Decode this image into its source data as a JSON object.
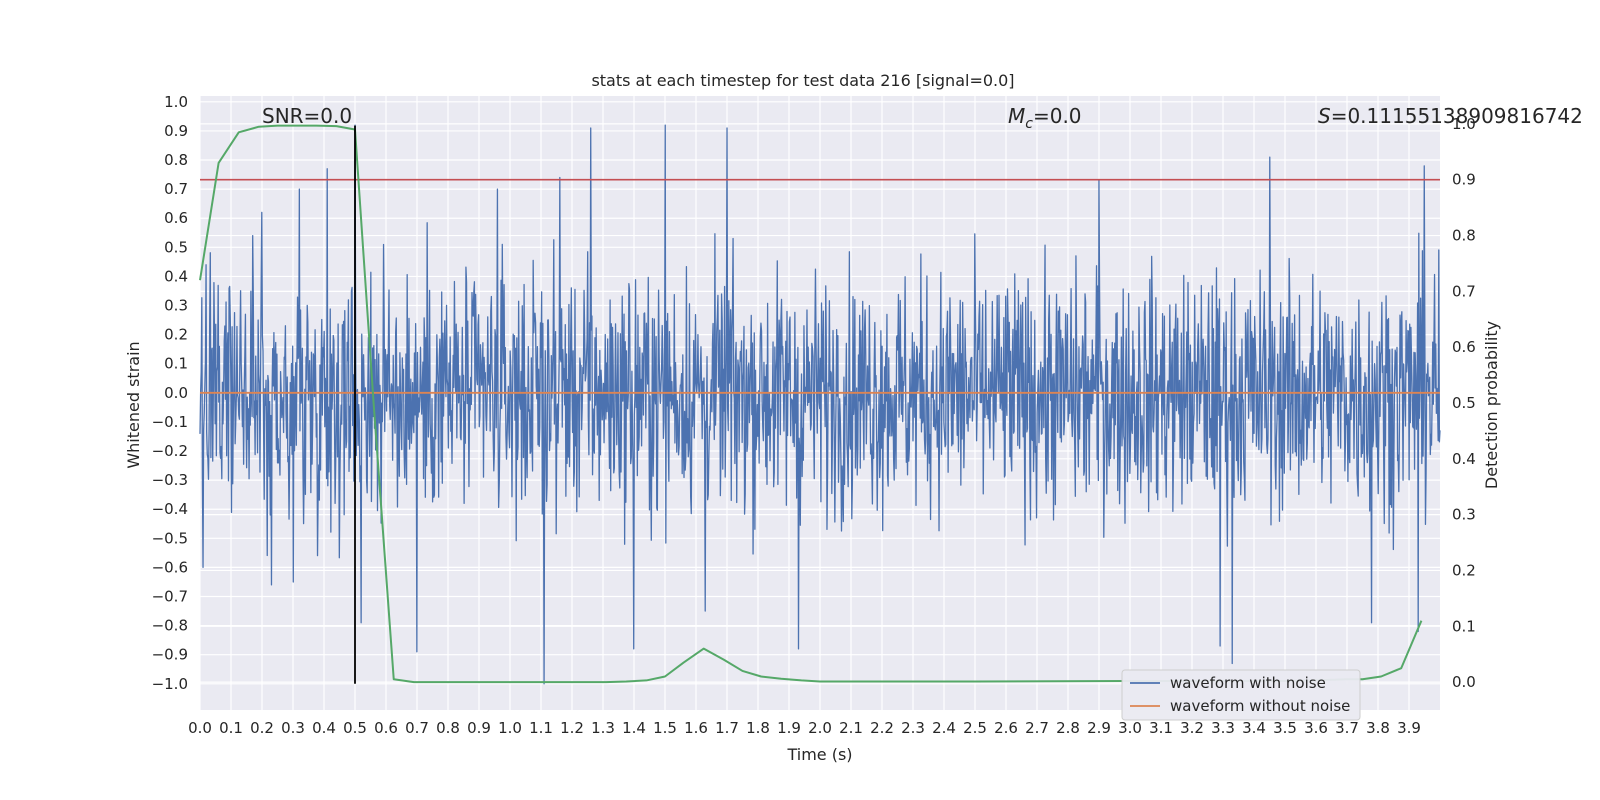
{
  "chart_data": {
    "type": "line",
    "title": "stats at each timestep for test data 216 [signal=0.0]",
    "xlabel": "Time (s)",
    "ylabel": "Whitened strain",
    "y2label": "Detection probability",
    "xlim": [
      0.0,
      4.0
    ],
    "ylim": [
      -1.09,
      1.02
    ],
    "y2lim": [
      -0.05,
      1.05
    ],
    "grid": true,
    "legend_position": "lower-right",
    "x_ticks": [
      "0.0",
      "0.1",
      "0.2",
      "0.3",
      "0.4",
      "0.5",
      "0.6",
      "0.7",
      "0.8",
      "0.9",
      "1.0",
      "1.1",
      "1.2",
      "1.3",
      "1.4",
      "1.5",
      "1.6",
      "1.7",
      "1.8",
      "1.9",
      "2.0",
      "2.1",
      "2.2",
      "2.3",
      "2.4",
      "2.5",
      "2.6",
      "2.7",
      "2.8",
      "2.9",
      "3.0",
      "3.1",
      "3.2",
      "3.3",
      "3.4",
      "3.5",
      "3.6",
      "3.7",
      "3.8",
      "3.9"
    ],
    "y_ticks": [
      "1.0",
      "0.9",
      "0.8",
      "0.7",
      "0.6",
      "0.5",
      "0.4",
      "0.3",
      "0.2",
      "0.1",
      "0.0",
      "−0.1",
      "−0.2",
      "−0.3",
      "−0.4",
      "−0.5",
      "−0.6",
      "−0.7",
      "−0.8",
      "−0.9",
      "−1.0"
    ],
    "y2_ticks": [
      "1.0",
      "0.9",
      "0.8",
      "0.7",
      "0.6",
      "0.5",
      "0.4",
      "0.3",
      "0.2",
      "0.1",
      "0.0"
    ],
    "annotations": {
      "snr": "SNR=0.0",
      "mc_symbol": "M",
      "mc_sub": "c",
      "mc_value": "=0.0",
      "s_symbol": "S",
      "s_value": "=0.11155138909816742"
    },
    "series": [
      {
        "name": "waveform with noise",
        "color": "#4c72b0",
        "axis": "left",
        "description": "whitened noise, 2048 samples over 0-4 s",
        "spikes": [
          {
            "t": 0.02,
            "v": 0.44
          },
          {
            "t": 0.17,
            "v": 0.54
          },
          {
            "t": 0.2,
            "v": 0.62
          },
          {
            "t": 0.3,
            "v": 0.75
          },
          {
            "t": 0.32,
            "v": 0.7
          },
          {
            "t": 0.41,
            "v": 0.77
          },
          {
            "t": 0.5,
            "v": 0.92
          },
          {
            "t": 0.96,
            "v": 0.7
          },
          {
            "t": 1.16,
            "v": 0.74
          },
          {
            "t": 1.26,
            "v": 0.91
          },
          {
            "t": 1.5,
            "v": 0.92
          },
          {
            "t": 1.7,
            "v": 0.91
          },
          {
            "t": 2.9,
            "v": 0.73
          },
          {
            "t": 3.45,
            "v": 0.81
          },
          {
            "t": 3.95,
            "v": 0.78
          },
          {
            "t": 0.01,
            "v": -0.6
          },
          {
            "t": 0.23,
            "v": -0.66
          },
          {
            "t": 0.3,
            "v": -0.65
          },
          {
            "t": 0.52,
            "v": -0.79
          },
          {
            "t": 0.7,
            "v": -0.89
          },
          {
            "t": 1.11,
            "v": -1.0
          },
          {
            "t": 1.4,
            "v": -0.88
          },
          {
            "t": 1.63,
            "v": -0.75
          },
          {
            "t": 1.93,
            "v": -0.88
          },
          {
            "t": 3.29,
            "v": -0.87
          },
          {
            "t": 3.33,
            "v": -0.93
          },
          {
            "t": 3.78,
            "v": -0.79
          },
          {
            "t": 3.93,
            "v": -0.82
          }
        ]
      },
      {
        "name": "waveform without noise",
        "color": "#dd8452",
        "axis": "left",
        "x": [
          0.0,
          4.0
        ],
        "values": [
          0.0,
          0.0
        ]
      },
      {
        "name": "detection probability",
        "color": "#55a868",
        "axis": "right",
        "x": [
          0.0,
          0.06,
          0.125,
          0.19,
          0.25,
          0.31,
          0.375,
          0.44,
          0.5,
          0.56,
          0.625,
          0.69,
          0.75,
          0.81,
          0.875,
          0.94,
          1.0,
          1.06,
          1.125,
          1.19,
          1.25,
          1.31,
          1.375,
          1.44,
          1.5,
          1.56,
          1.625,
          1.69,
          1.75,
          1.81,
          1.875,
          1.94,
          2.0,
          2.5,
          3.0,
          3.5,
          3.6,
          3.7,
          3.75,
          3.81,
          3.875,
          3.94
        ],
        "values": [
          0.72,
          0.93,
          0.985,
          0.995,
          0.997,
          0.997,
          0.997,
          0.996,
          0.99,
          0.5,
          0.005,
          0.0,
          0.0,
          0.0,
          0.0,
          0.0,
          0.0,
          0.0,
          0.0,
          0.0,
          0.0,
          0.0,
          0.001,
          0.003,
          0.01,
          0.035,
          0.06,
          0.04,
          0.02,
          0.01,
          0.006,
          0.003,
          0.001,
          0.001,
          0.002,
          0.002,
          0.003,
          0.005,
          0.005,
          0.01,
          0.025,
          0.11
        ]
      }
    ],
    "reference_lines": [
      {
        "name": "threshold",
        "axis": "right",
        "value": 0.9,
        "color": "#c44e52"
      },
      {
        "name": "event-marker",
        "axis": "x",
        "value": 0.5,
        "color": "#000000"
      }
    ],
    "legend": [
      "waveform with noise",
      "waveform without noise"
    ]
  }
}
